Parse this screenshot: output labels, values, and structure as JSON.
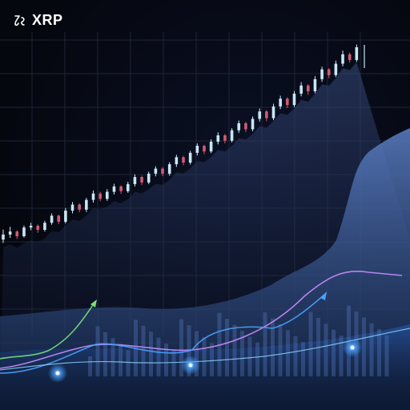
{
  "header": {
    "ticker": "XRP"
  },
  "colors": {
    "background": "#05070f",
    "grid": "#1d2536",
    "candle_up": "#c8e6f5",
    "candle_down": "#d05a72",
    "area_back": "#2a3a66",
    "area_front": "#3d5c9a",
    "line_green": "#7be07b",
    "line_violet": "#c78cff",
    "line_blue": "#4aa3ff",
    "glow": "#5fb8ff"
  },
  "chart_data": {
    "type": "line",
    "xlim": [
      0,
      100
    ],
    "ylim": [
      0,
      100
    ],
    "grid": true,
    "candles": [
      [
        24.0,
        27.0,
        23.0,
        25.5,
        0
      ],
      [
        25.5,
        27.8,
        24.5,
        26.4,
        1
      ],
      [
        26.4,
        26.8,
        24.2,
        25.0,
        2
      ],
      [
        25.0,
        28.2,
        24.6,
        27.6,
        3
      ],
      [
        27.6,
        29.0,
        26.8,
        28.1,
        4
      ],
      [
        28.1,
        28.5,
        26.0,
        26.9,
        5
      ],
      [
        26.9,
        29.6,
        26.4,
        29.0,
        6
      ],
      [
        29.0,
        31.8,
        28.4,
        31.1,
        7
      ],
      [
        31.1,
        31.4,
        28.6,
        29.3,
        8
      ],
      [
        29.3,
        33.4,
        28.8,
        32.6,
        9
      ],
      [
        32.6,
        35.2,
        31.8,
        34.4,
        10
      ],
      [
        34.4,
        34.8,
        32.1,
        32.9,
        11
      ],
      [
        32.9,
        36.4,
        32.2,
        35.8,
        12
      ],
      [
        35.8,
        38.6,
        35.0,
        37.7,
        13
      ],
      [
        37.7,
        38.2,
        35.4,
        36.1,
        14
      ],
      [
        36.1,
        39.0,
        35.5,
        38.2,
        15
      ],
      [
        38.2,
        40.6,
        37.4,
        39.8,
        16
      ],
      [
        39.8,
        40.1,
        37.6,
        38.4,
        17
      ],
      [
        38.4,
        41.2,
        37.9,
        40.5,
        18
      ],
      [
        40.5,
        43.4,
        39.8,
        42.6,
        19
      ],
      [
        42.6,
        43.0,
        40.2,
        41.0,
        20
      ],
      [
        41.0,
        44.2,
        40.5,
        43.6,
        21
      ],
      [
        43.6,
        45.8,
        42.8,
        45.1,
        22
      ],
      [
        45.1,
        45.5,
        42.9,
        43.6,
        23
      ],
      [
        43.6,
        47.0,
        43.0,
        46.4,
        24
      ],
      [
        46.4,
        49.2,
        45.6,
        48.5,
        25
      ],
      [
        48.5,
        48.9,
        46.1,
        46.9,
        26
      ],
      [
        46.9,
        50.4,
        46.3,
        49.8,
        27
      ],
      [
        49.8,
        52.6,
        49.0,
        51.9,
        28
      ],
      [
        51.9,
        52.2,
        49.4,
        50.2,
        29
      ],
      [
        50.2,
        53.8,
        49.7,
        53.1,
        30
      ],
      [
        53.1,
        55.9,
        52.3,
        55.0,
        31
      ],
      [
        55.0,
        55.4,
        52.6,
        53.4,
        32
      ],
      [
        53.4,
        57.1,
        52.9,
        56.5,
        33
      ],
      [
        56.5,
        59.4,
        55.7,
        58.6,
        34
      ],
      [
        58.6,
        59.0,
        56.0,
        56.8,
        35
      ],
      [
        56.8,
        60.6,
        56.2,
        59.9,
        36
      ],
      [
        59.9,
        63.0,
        59.1,
        62.1,
        37
      ],
      [
        62.1,
        62.5,
        59.2,
        60.1,
        38
      ],
      [
        60.1,
        64.4,
        59.5,
        63.6,
        39
      ],
      [
        63.6,
        66.8,
        62.8,
        65.9,
        40
      ],
      [
        65.9,
        66.3,
        63.1,
        64.0,
        41
      ],
      [
        64.0,
        68.2,
        63.4,
        67.4,
        42
      ],
      [
        67.4,
        70.8,
        66.6,
        69.8,
        43
      ],
      [
        69.8,
        70.2,
        67.0,
        68.1,
        44
      ],
      [
        68.1,
        72.6,
        67.5,
        71.7,
        45
      ],
      [
        71.7,
        75.4,
        70.9,
        74.6,
        46
      ],
      [
        74.6,
        75.0,
        72.0,
        72.9,
        47
      ],
      [
        72.9,
        77.2,
        72.3,
        76.3,
        48
      ],
      [
        76.3,
        80.2,
        75.5,
        79.1,
        49
      ],
      [
        79.1,
        79.6,
        76.6,
        77.4,
        50
      ],
      [
        77.4,
        82.0,
        76.8,
        81.2,
        51
      ]
    ],
    "series": [
      {
        "x": [
          0,
          8,
          16,
          24,
          30,
          40,
          50,
          60,
          70,
          76,
          82,
          88,
          94,
          100
        ],
        "y": [
          14,
          14.5,
          14,
          15,
          17,
          20,
          25,
          27,
          33,
          36,
          38,
          42,
          44,
          46
        ]
      },
      {
        "x": [
          0,
          10,
          20,
          30,
          40,
          50,
          60,
          70,
          80,
          86,
          90,
          96,
          100
        ],
        "y": [
          9,
          9.5,
          11,
          16,
          18,
          18,
          21,
          23,
          28,
          31,
          32,
          30,
          29
        ]
      },
      {
        "x": [
          0,
          10,
          20,
          30,
          40,
          50,
          60,
          70,
          80,
          90,
          100
        ],
        "y": [
          8,
          9,
          10,
          9,
          11,
          13,
          12,
          14,
          17,
          19,
          20
        ]
      }
    ]
  }
}
